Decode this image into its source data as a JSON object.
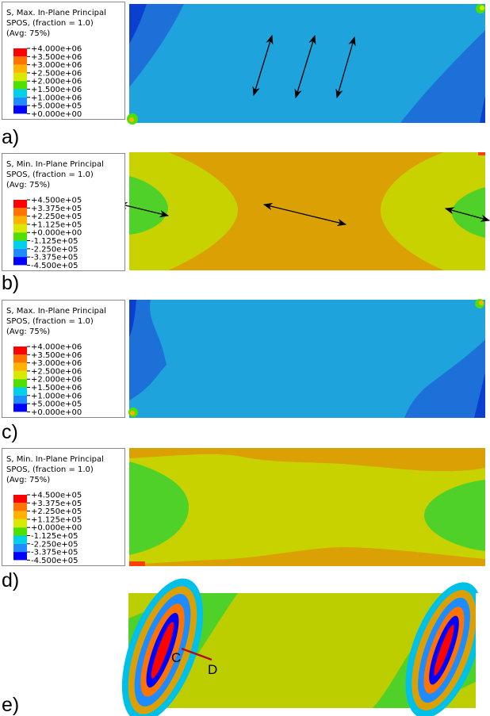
{
  "panels": [
    {
      "label": "a)",
      "legend": {
        "title": [
          "S, Max. In-Plane Principal",
          "SPOS, (fraction = 1.0)",
          "(Avg: 75%)"
        ],
        "values": [
          "+4.000e+06",
          "+3.500e+06",
          "+3.000e+06",
          "+2.500e+06",
          "+2.000e+06",
          "+1.500e+06",
          "+1.000e+06",
          "+5.000e+05",
          "+0.000e+00"
        ],
        "colors": [
          "#ff0000",
          "#ff7300",
          "#ffb200",
          "#d8e800",
          "#4fe000",
          "#00d0e8",
          "#1e8cff",
          "#0000ff"
        ]
      }
    },
    {
      "label": "b)",
      "legend": {
        "title": [
          "S, Min. In-Plane Principal",
          "SPOS, (fraction = 1.0)",
          "(Avg: 75%)"
        ],
        "values": [
          "+4.500e+05",
          "+3.375e+05",
          "+2.250e+05",
          "+1.125e+05",
          "+0.000e+00",
          "-1.125e+05",
          "-2.250e+05",
          "-3.375e+05",
          "-4.500e+05"
        ],
        "colors": [
          "#ff0000",
          "#ff7300",
          "#ffb200",
          "#d8e800",
          "#4fe000",
          "#00d0e8",
          "#1e8cff",
          "#0000ff"
        ]
      }
    },
    {
      "label": "c)",
      "legend": {
        "title": [
          "S, Max. In-Plane Principal",
          "SPOS, (fraction = 1.0)",
          "(Avg: 75%)"
        ],
        "values": [
          "+4.000e+06",
          "+3.500e+06",
          "+3.000e+06",
          "+2.500e+06",
          "+2.000e+06",
          "+1.500e+06",
          "+1.000e+06",
          "+5.000e+05",
          "+0.000e+00"
        ],
        "colors": [
          "#ff0000",
          "#ff7300",
          "#ffb200",
          "#d8e800",
          "#4fe000",
          "#00d0e8",
          "#1e8cff",
          "#0000ff"
        ]
      }
    },
    {
      "label": "d)",
      "legend": {
        "title": [
          "S, Min. In-Plane Principal",
          "SPOS, (fraction = 1.0)",
          "(Avg: 75%)"
        ],
        "values": [
          "+4.500e+05",
          "+3.375e+05",
          "+2.250e+05",
          "+1.125e+05",
          "+0.000e+00",
          "-1.125e+05",
          "-2.250e+05",
          "-3.375e+05",
          "-4.500e+05"
        ],
        "colors": [
          "#ff0000",
          "#ff7300",
          "#ffb200",
          "#d8e800",
          "#4fe000",
          "#00d0e8",
          "#1e8cff",
          "#0000ff"
        ]
      }
    },
    {
      "label": "e)",
      "annotations": [
        "C",
        "D"
      ]
    }
  ]
}
